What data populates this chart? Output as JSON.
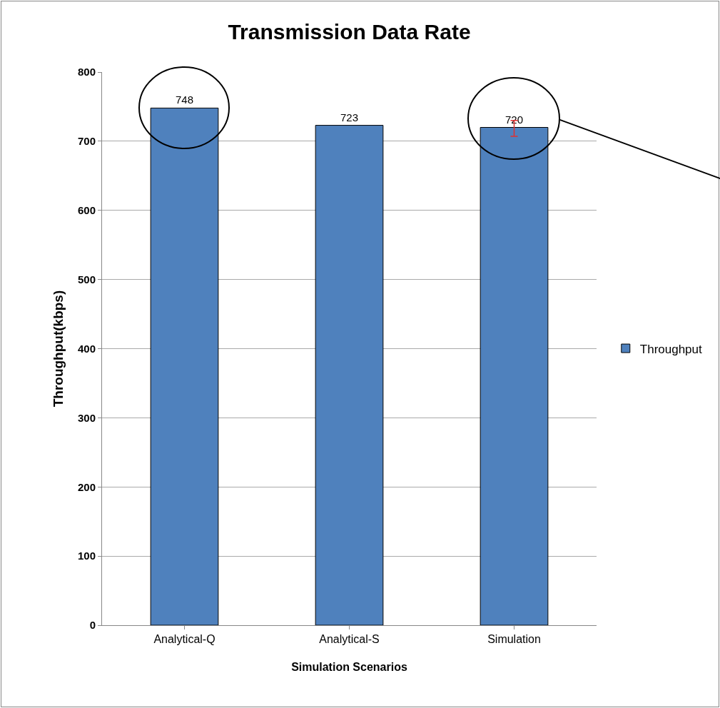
{
  "chart_data": {
    "type": "bar",
    "title": "Transmission Data Rate",
    "xlabel": "Simulation Scenarios",
    "ylabel": "Throughput(kbps)",
    "categories": [
      "Analytical-Q",
      "Analytical-S",
      "Simulation"
    ],
    "series": [
      {
        "name": "Throughput",
        "color": "#4f81bd",
        "values": [
          748,
          723,
          720
        ],
        "errors": [
          null,
          null,
          [
            707,
            730
          ]
        ]
      }
    ],
    "ylim": [
      0,
      800
    ],
    "yticks": [
      0,
      100,
      200,
      300,
      400,
      500,
      600,
      700,
      800
    ],
    "grid": "y",
    "legend": "right",
    "data_labels": true
  }
}
